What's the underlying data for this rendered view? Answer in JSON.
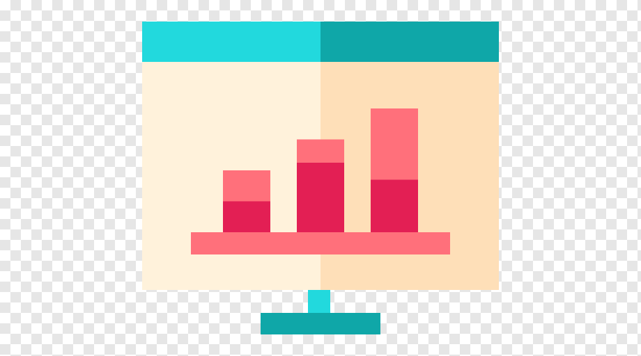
{
  "icon": {
    "name": "presentation-bar-chart-icon",
    "description_name": "monitor-with-bar-chart"
  },
  "colors": {
    "background_light": "#ffffff",
    "background_checker": "#e6e6e6",
    "header_left": "#22d9dd",
    "header_right": "#0fa7a8",
    "screen_left": "#fff2db",
    "screen_right": "#fedfb8",
    "bar_top": "#ff707b",
    "bar_bottom": "#e31f54",
    "baseline": "#ff707b",
    "stand_neck": "#22d9dd",
    "stand_base": "#0fa7a8"
  },
  "bars": [
    {
      "total": 2,
      "lower": 1
    },
    {
      "total": 3,
      "lower": 2.25
    },
    {
      "total": 4,
      "lower": 1.7
    }
  ]
}
